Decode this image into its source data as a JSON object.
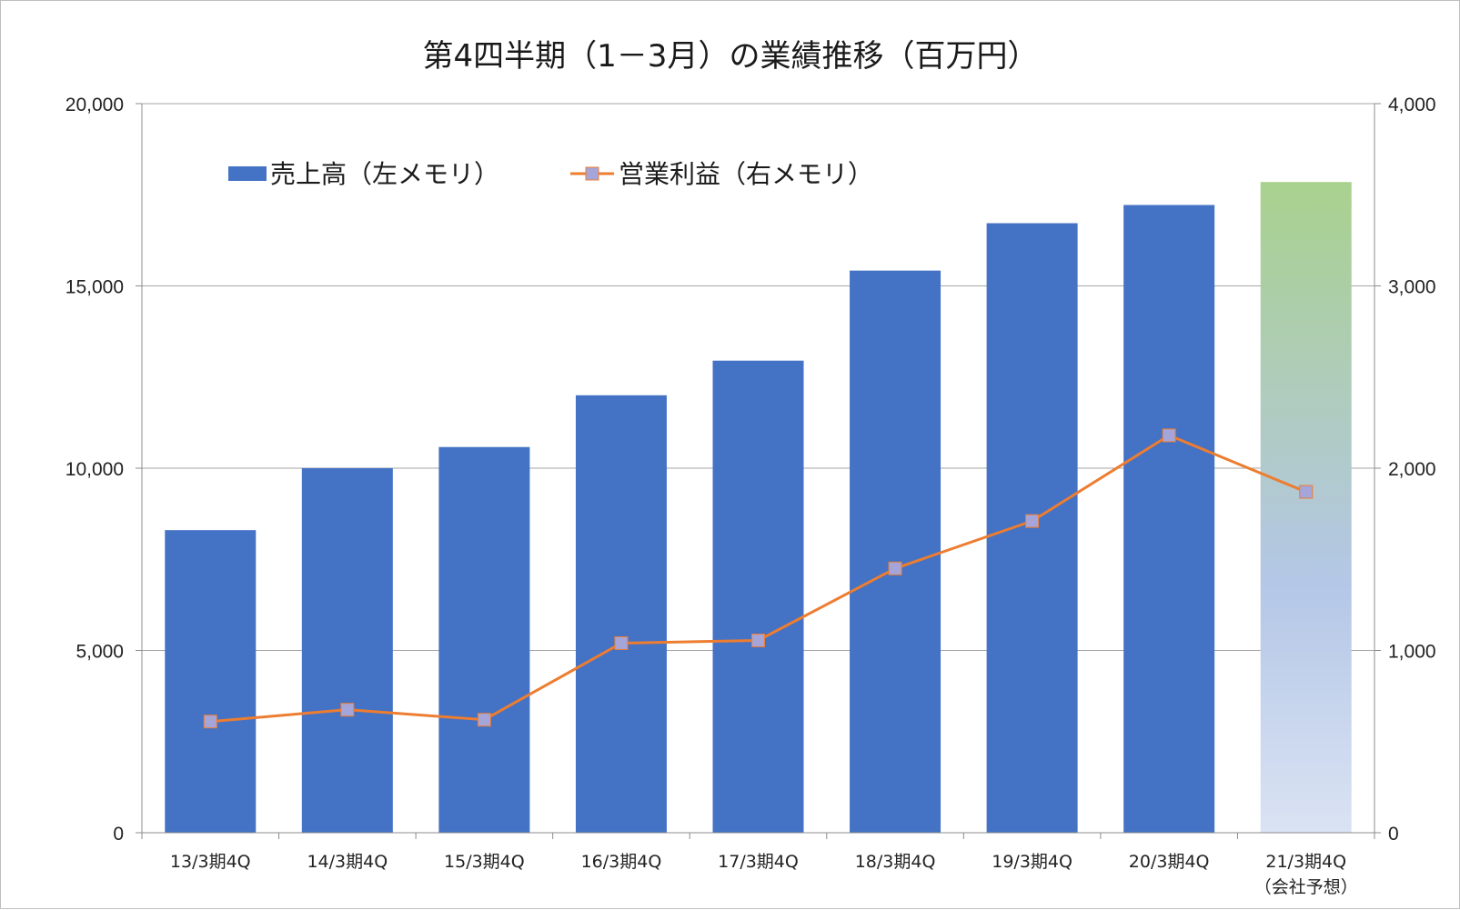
{
  "chart_data": {
    "type": "bar",
    "title": "第4四半期（1－3月）の業績推移（百万円）",
    "categories": [
      "13/3期4Q",
      "14/3期4Q",
      "15/3期4Q",
      "16/3期4Q",
      "17/3期4Q",
      "18/3期4Q",
      "19/3期4Q",
      "20/3期4Q",
      "21/3期4Q"
    ],
    "category_sublabels": [
      "",
      "",
      "",
      "",
      "",
      "",
      "",
      "",
      "（会社予想）"
    ],
    "series": [
      {
        "name": "売上高（左メモリ）",
        "type": "bar",
        "axis": "left",
        "color": "#4472c4",
        "forecast_gradient": [
          "#a9d18e",
          "#b4c7e7",
          "#dae3f3"
        ],
        "values": [
          8300,
          10000,
          10580,
          12000,
          12950,
          15420,
          16720,
          17220,
          17850
        ]
      },
      {
        "name": "営業利益（右メモリ）",
        "type": "line",
        "axis": "right",
        "color": "#ed7d31",
        "marker_color": "#a5a5d9",
        "values": [
          610,
          675,
          620,
          1040,
          1055,
          1450,
          1710,
          2180,
          1870
        ]
      }
    ],
    "y_left": {
      "min": 0,
      "max": 20000,
      "ticks": [
        "0",
        "5,000",
        "10,000",
        "15,000",
        "20,000"
      ]
    },
    "y_right": {
      "min": 0,
      "max": 4000,
      "ticks": [
        "0",
        "1,000",
        "2,000",
        "3,000",
        "4,000"
      ]
    },
    "grid": true,
    "legend": "top-left inside plot"
  }
}
